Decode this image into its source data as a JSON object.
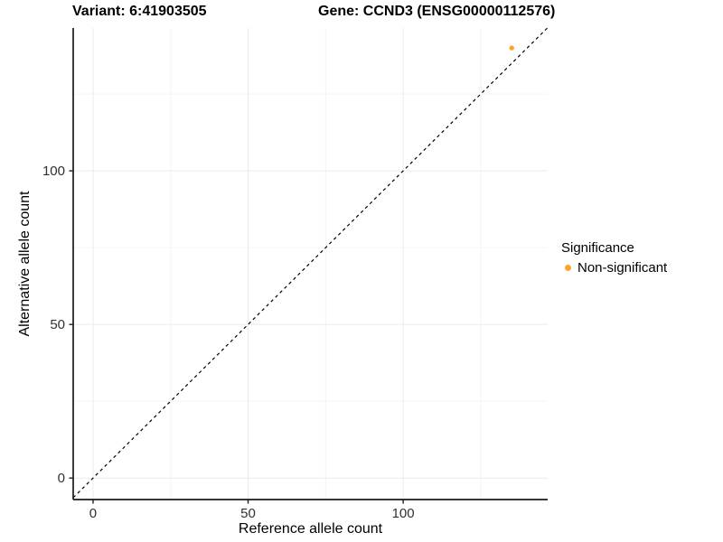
{
  "chart_data": {
    "type": "scatter",
    "title_variant": "Variant: 6:41903505",
    "title_gene": "Gene: CCND3 (ENSG00000112576)",
    "xlabel": "Reference allele count",
    "ylabel": "Alternative allele count",
    "xlim": [
      -6.4,
      146.6
    ],
    "ylim": [
      -7.0,
      146.5
    ],
    "x_ticks": [
      0,
      50,
      100
    ],
    "y_ticks": [
      0,
      50,
      100
    ],
    "x_minor_gridlines": [
      25,
      75,
      125
    ],
    "y_minor_gridlines": [
      25,
      75,
      125
    ],
    "grid": "on",
    "identity_line": {
      "style": "dashed",
      "slope": 1,
      "intercept": 0
    },
    "series": [
      {
        "name": "Non-significant",
        "color": "#FDA428",
        "points": [
          {
            "x": 135,
            "y": 140
          }
        ]
      }
    ],
    "legend": {
      "title": "Significance",
      "position": "right",
      "items": [
        {
          "label": "Non-significant",
          "color": "#FDA428",
          "marker": "circle"
        }
      ]
    },
    "colors": {
      "point": "#FDA428",
      "grid_major": "#EBEBEB",
      "grid_minor": "#F4F4F4",
      "axis_line": "#1A1A1A",
      "tick_label": "#303030",
      "identity_line": "#000000",
      "background": "#FFFFFF"
    }
  }
}
